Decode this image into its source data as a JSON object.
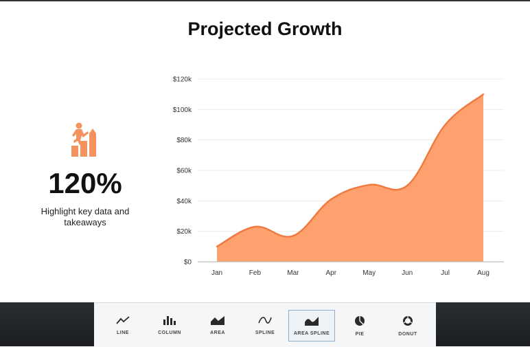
{
  "slide": {
    "title": "Projected Growth",
    "kpi": {
      "icon": "person-climbing-bars-icon",
      "value": "120%",
      "caption": "Highlight key data and takeaways"
    }
  },
  "chart_data": {
    "type": "area",
    "smooth": true,
    "categories": [
      "Jan",
      "Feb",
      "Mar",
      "Apr",
      "May",
      "Jun",
      "Jul",
      "Aug"
    ],
    "values": [
      10000,
      23000,
      17000,
      41000,
      50500,
      50000,
      90000,
      110000
    ],
    "ylim": [
      0,
      120000
    ],
    "yticks": [
      0,
      20000,
      40000,
      60000,
      80000,
      100000,
      120000
    ],
    "ytick_labels": [
      "$0",
      "$20k",
      "$40k",
      "$60k",
      "$80k",
      "$100k",
      "$120k"
    ],
    "grid": true,
    "legend": "none",
    "fill_color": "#ffa16f",
    "line_color": "#f07a3e"
  },
  "toolbar": {
    "items": [
      {
        "label": "LINE",
        "icon": "line-chart-icon"
      },
      {
        "label": "COLUMN",
        "icon": "column-chart-icon"
      },
      {
        "label": "AREA",
        "icon": "area-chart-icon"
      },
      {
        "label": "SPLINE",
        "icon": "spline-chart-icon"
      },
      {
        "label": "AREA SPLINE",
        "icon": "area-spline-chart-icon"
      },
      {
        "label": "PIE",
        "icon": "pie-chart-icon"
      },
      {
        "label": "DONUT",
        "icon": "donut-chart-icon"
      }
    ],
    "selected": "AREA SPLINE"
  }
}
